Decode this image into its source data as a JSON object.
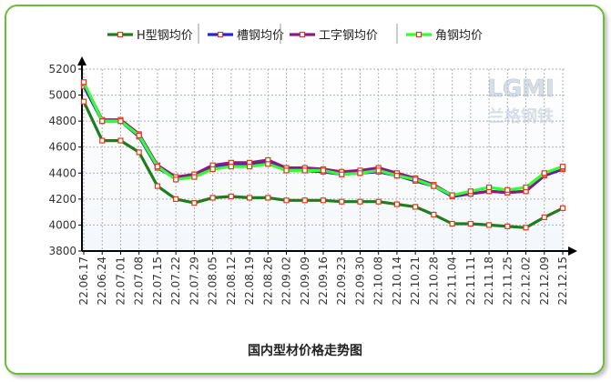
{
  "chart_data": {
    "type": "line",
    "title": "国内型材价格走势图",
    "xlabel": "",
    "ylabel": "",
    "ylim": [
      3800,
      5200
    ],
    "yticks": [
      3800,
      4000,
      4200,
      4400,
      4600,
      4800,
      5000,
      5200
    ],
    "grid": true,
    "legend_position": "top",
    "categories": [
      "22.06.17",
      "22.06.24",
      "22.07.01",
      "22.07.08",
      "22.07.15",
      "22.07.22",
      "22.07.29",
      "22.08.05",
      "22.08.12",
      "22.08.19",
      "22.08.26",
      "22.09.02",
      "22.09.09",
      "22.09.16",
      "22.09.23",
      "22.09.30",
      "22.10.08",
      "22.10.14",
      "22.10.21",
      "22.10.28",
      "22.11.04",
      "22.11.11",
      "22.11.18",
      "22.11.25",
      "22.12.02",
      "22.12.09",
      "22.12.15"
    ],
    "series": [
      {
        "name": "H型钢均价",
        "color": "#1e7d1e",
        "values": [
          4950,
          4650,
          4650,
          4560,
          4300,
          4200,
          4170,
          4210,
          4220,
          4210,
          4210,
          4190,
          4190,
          4190,
          4180,
          4180,
          4180,
          4160,
          4140,
          4080,
          4010,
          4010,
          4000,
          3990,
          3980,
          4060,
          4130
        ]
      },
      {
        "name": "槽钢均价",
        "color": "#2424d4",
        "values": [
          5070,
          4800,
          4800,
          4680,
          4440,
          4360,
          4380,
          4440,
          4460,
          4460,
          4480,
          4420,
          4420,
          4410,
          4390,
          4400,
          4410,
          4380,
          4340,
          4300,
          4220,
          4240,
          4260,
          4250,
          4260,
          4380,
          4430
        ]
      },
      {
        "name": "工字钢均价",
        "color": "#8a1a8a",
        "values": [
          5090,
          4810,
          4810,
          4700,
          4460,
          4370,
          4390,
          4460,
          4480,
          4480,
          4500,
          4440,
          4440,
          4430,
          4410,
          4420,
          4440,
          4400,
          4360,
          4310,
          4230,
          4240,
          4260,
          4250,
          4260,
          4390,
          4440
        ]
      },
      {
        "name": "角钢均价",
        "color": "#33ff33",
        "values": [
          5100,
          4800,
          4800,
          4690,
          4450,
          4350,
          4370,
          4430,
          4450,
          4450,
          4470,
          4420,
          4420,
          4420,
          4390,
          4400,
          4420,
          4380,
          4350,
          4300,
          4230,
          4260,
          4290,
          4270,
          4290,
          4400,
          4450
        ]
      }
    ]
  },
  "watermark": {
    "logo": "LGMI",
    "text": "兰格钢铁"
  }
}
